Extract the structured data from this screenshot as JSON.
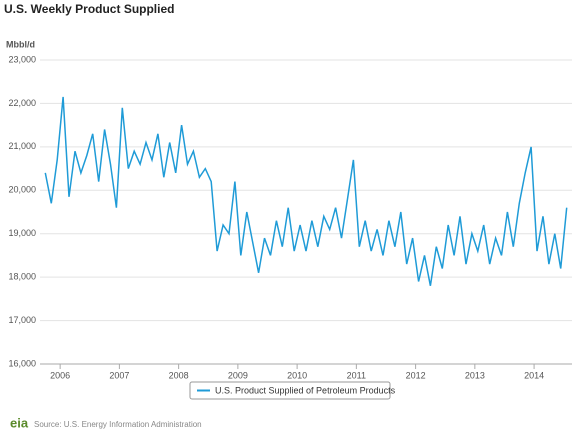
{
  "chart_data": {
    "type": "line",
    "title": "U.S. Weekly Product Supplied",
    "y_label": "Mbbl/d",
    "source": "Source: U.S. Energy Information Administration",
    "logo": "eia",
    "x": [
      2005.75,
      2005.85,
      2005.95,
      2006.05,
      2006.15,
      2006.25,
      2006.35,
      2006.45,
      2006.55,
      2006.65,
      2006.75,
      2006.85,
      2006.95,
      2007.05,
      2007.15,
      2007.25,
      2007.35,
      2007.45,
      2007.55,
      2007.65,
      2007.75,
      2007.85,
      2007.95,
      2008.05,
      2008.15,
      2008.25,
      2008.35,
      2008.45,
      2008.55,
      2008.65,
      2008.75,
      2008.85,
      2008.95,
      2009.05,
      2009.15,
      2009.25,
      2009.35,
      2009.45,
      2009.55,
      2009.65,
      2009.75,
      2009.85,
      2009.95,
      2010.05,
      2010.15,
      2010.25,
      2010.35,
      2010.45,
      2010.55,
      2010.65,
      2010.75,
      2010.85,
      2010.95,
      2011.05,
      2011.15,
      2011.25,
      2011.35,
      2011.45,
      2011.55,
      2011.65,
      2011.75,
      2011.85,
      2011.95,
      2012.05,
      2012.15,
      2012.25,
      2012.35,
      2012.45,
      2012.55,
      2012.65,
      2012.75,
      2012.85,
      2012.95,
      2013.05,
      2013.15,
      2013.25,
      2013.35,
      2013.45,
      2013.55,
      2013.65,
      2013.75,
      2013.85,
      2013.95,
      2014.05,
      2014.15,
      2014.25,
      2014.35,
      2014.45,
      2014.55
    ],
    "series": [
      {
        "name": "U.S. Product Supplied of Petroleum Products",
        "color": "#1f9bd7",
        "values": [
          20400,
          19700,
          20700,
          22150,
          19850,
          20900,
          20400,
          20800,
          21300,
          20200,
          21400,
          20600,
          19600,
          21900,
          20500,
          20900,
          20600,
          21100,
          20700,
          21300,
          20300,
          21100,
          20400,
          21500,
          20600,
          20900,
          20300,
          20500,
          20200,
          18600,
          19200,
          19000,
          20200,
          18500,
          19500,
          18800,
          18100,
          18900,
          18500,
          19300,
          18700,
          19600,
          18600,
          19200,
          18600,
          19300,
          18700,
          19400,
          19100,
          19600,
          18900,
          19800,
          20700,
          18700,
          19300,
          18600,
          19100,
          18500,
          19300,
          18700,
          19500,
          18300,
          18900,
          17900,
          18500,
          17800,
          18700,
          18200,
          19200,
          18500,
          19400,
          18300,
          19000,
          18600,
          19200,
          18300,
          18900,
          18500,
          19500,
          18700,
          19700,
          20400,
          21000,
          18600,
          19400,
          18300,
          19000,
          18200,
          19600
        ]
      }
    ],
    "xlim": [
      2005.66,
      2014.64
    ],
    "xticks": [
      2006,
      2007,
      2008,
      2009,
      2010,
      2011,
      2012,
      2013,
      2014
    ],
    "ylim": [
      16000,
      23000
    ],
    "yticks": [
      {
        "value": 16000,
        "label": "16,000"
      },
      {
        "value": 17000,
        "label": "17,000"
      },
      {
        "value": 18000,
        "label": "18,000"
      },
      {
        "value": 19000,
        "label": "19,000"
      },
      {
        "value": 20000,
        "label": "20,000"
      },
      {
        "value": 21000,
        "label": "21,000"
      },
      {
        "value": 22000,
        "label": "22,000"
      },
      {
        "value": 23000,
        "label": "23,000"
      }
    ],
    "grid": true
  }
}
